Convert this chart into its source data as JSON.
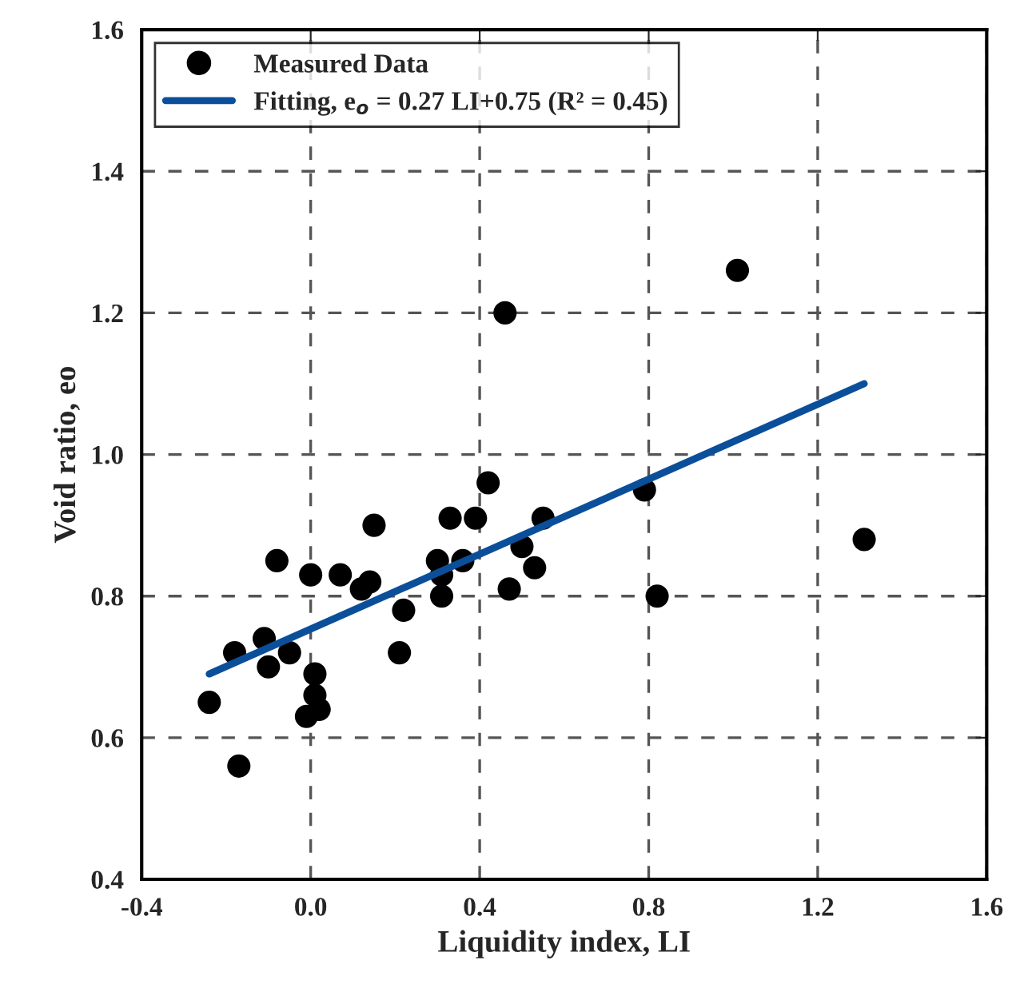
{
  "chart_data": {
    "type": "scatter",
    "xlabel": "Liquidity index, LI",
    "ylabel": "Void ratio, eo",
    "series": [
      {
        "name": "Measured Data",
        "color": "#000000",
        "marker": "circle",
        "x": [
          -0.24,
          -0.17,
          -0.18,
          -0.11,
          -0.1,
          -0.05,
          -0.08,
          0.0,
          0.01,
          0.01,
          -0.01,
          0.02,
          0.07,
          0.12,
          0.14,
          0.15,
          0.22,
          0.21,
          0.3,
          0.31,
          0.31,
          0.33,
          0.36,
          0.39,
          0.42,
          0.46,
          0.47,
          0.5,
          0.53,
          0.55,
          0.79,
          0.82,
          1.01,
          1.31
        ],
        "values": [
          0.65,
          0.56,
          0.72,
          0.74,
          0.7,
          0.72,
          0.85,
          0.83,
          0.69,
          0.66,
          0.63,
          0.64,
          0.83,
          0.81,
          0.82,
          0.9,
          0.78,
          0.72,
          0.85,
          0.83,
          0.8,
          0.91,
          0.85,
          0.91,
          0.96,
          1.2,
          0.81,
          0.87,
          0.84,
          0.91,
          0.95,
          0.8,
          1.26,
          0.88
        ]
      },
      {
        "name": "Fitting, e$_{o}$ = 0.27 LI+0.75 (R² = 0.45)",
        "type": "line",
        "color": "#0b4f9a",
        "marker": "none",
        "line_style": "solid",
        "x": [
          -0.24,
          1.31
        ],
        "values": [
          0.69,
          1.1
        ]
      }
    ],
    "xlim": [
      -0.4,
      1.6
    ],
    "xticks": [
      {
        "value": -0.4,
        "label": "-0.4"
      },
      {
        "value": 0.0,
        "label": "0.0"
      },
      {
        "value": 0.4,
        "label": "0.4"
      },
      {
        "value": 0.8,
        "label": "0.8"
      },
      {
        "value": 1.2,
        "label": "1.2"
      },
      {
        "value": 1.6,
        "label": "1.6"
      }
    ],
    "ylim": [
      0.4,
      1.6
    ],
    "yticks": [
      {
        "value": 0.4,
        "label": "0.4"
      },
      {
        "value": 0.6,
        "label": "0.6"
      },
      {
        "value": 0.8,
        "label": "0.8"
      },
      {
        "value": 1.0,
        "label": "1.0"
      },
      {
        "value": 1.2,
        "label": "1.2"
      },
      {
        "value": 1.4,
        "label": "1.4"
      },
      {
        "value": 1.6,
        "label": "1.6"
      }
    ],
    "grid": true,
    "legend": "top left"
  }
}
